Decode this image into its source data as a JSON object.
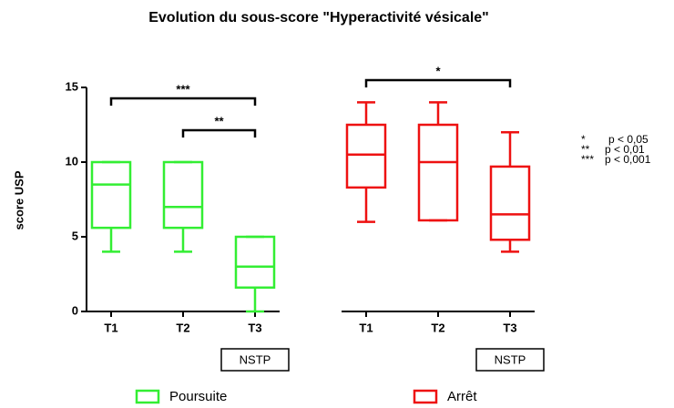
{
  "chart_data": {
    "type": "box",
    "title": "Evolution du sous-score \"Hyperactivité vésicale\"",
    "y_label": "score USP",
    "ylim": [
      0,
      15
    ],
    "yticks": [
      0,
      5,
      10,
      15
    ],
    "series": [
      {
        "name": "Poursuite",
        "color": "#33ee33",
        "group_label": "NSTP",
        "categories": [
          "T1",
          "T2",
          "T3"
        ],
        "min": [
          4,
          4,
          0
        ],
        "q1": [
          5.6,
          5.6,
          1.6
        ],
        "median": [
          8.5,
          7,
          3
        ],
        "q3": [
          10,
          10,
          5
        ],
        "max": [
          10,
          10,
          5
        ]
      },
      {
        "name": "Arrêt",
        "color": "#ee1111",
        "group_label": "NSTP",
        "categories": [
          "T1",
          "T2",
          "T3"
        ],
        "min": [
          6,
          6.1,
          4
        ],
        "q1": [
          8.3,
          6.1,
          4.8
        ],
        "median": [
          10.5,
          10,
          6.5
        ],
        "q3": [
          12.5,
          12.5,
          9.7
        ],
        "max": [
          14,
          14,
          12
        ]
      }
    ],
    "brackets": [
      {
        "series": 0,
        "from": 0,
        "to": 2,
        "label": "***"
      },
      {
        "series": 0,
        "from": 1,
        "to": 2,
        "label": "**"
      },
      {
        "series": 1,
        "from": 0,
        "to": 2,
        "label": "*"
      }
    ],
    "significance_legend": [
      {
        "symbol": "*",
        "text": "p < 0,05"
      },
      {
        "symbol": "**",
        "text": "p < 0,01"
      },
      {
        "symbol": "***",
        "text": "p < 0,001"
      }
    ]
  }
}
